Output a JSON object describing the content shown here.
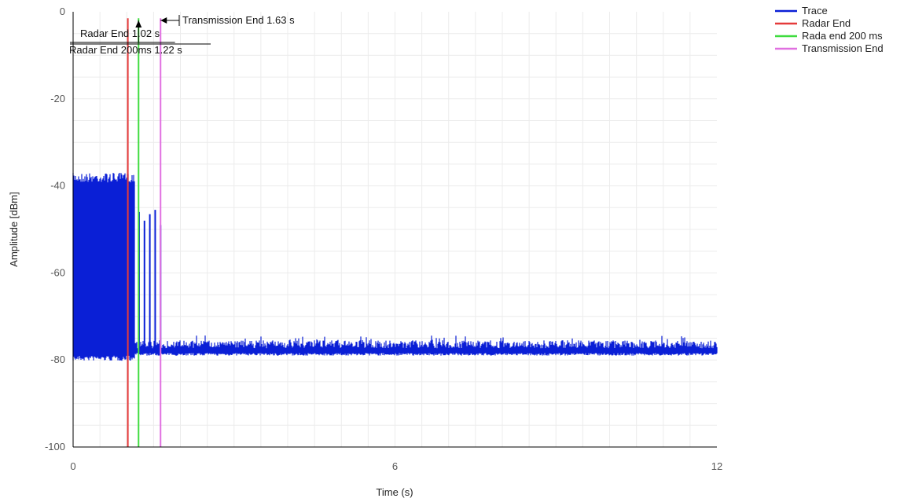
{
  "chart_data": {
    "type": "line",
    "xlabel": "Time (s)",
    "ylabel": "Amplitude [dBm]",
    "xlim": [
      0,
      12
    ],
    "ylim": [
      -100,
      0
    ],
    "x_ticks": [
      0,
      6,
      12
    ],
    "y_ticks": [
      0,
      -20,
      -40,
      -60,
      -80,
      -100
    ],
    "grid": true,
    "legend_position": "top-right",
    "series": [
      {
        "name": "Trace",
        "color": "#0a1fd6",
        "description_points": [
          {
            "x_start": 0,
            "x_end": 1.15,
            "y_high": -37,
            "y_low": -79
          },
          {
            "x_start": 1.15,
            "x_end": 12,
            "y_high": -75.5,
            "y_low": -79
          }
        ],
        "spikes": [
          {
            "x": 1.23,
            "y": -46
          },
          {
            "x": 1.33,
            "y": -48
          },
          {
            "x": 1.43,
            "y": -46.5
          },
          {
            "x": 1.53,
            "y": -45.5
          },
          {
            "x": 1.63,
            "y": -49
          }
        ]
      },
      {
        "name": "Radar End",
        "color": "#e53b3b",
        "x": 1.02
      },
      {
        "name": "Rada end 200 ms",
        "color": "#3fdc3f",
        "x": 1.22
      },
      {
        "name": "Transmission End",
        "color": "#e070e0",
        "x": 1.63
      }
    ],
    "annotations": [
      {
        "text": "Transmission End 1.63 s",
        "x": 1.63
      },
      {
        "text": "Radar End 1.02 s",
        "x": 1.02
      },
      {
        "text": "Radar End 200ms 1.22 s",
        "x": 1.22
      }
    ]
  }
}
